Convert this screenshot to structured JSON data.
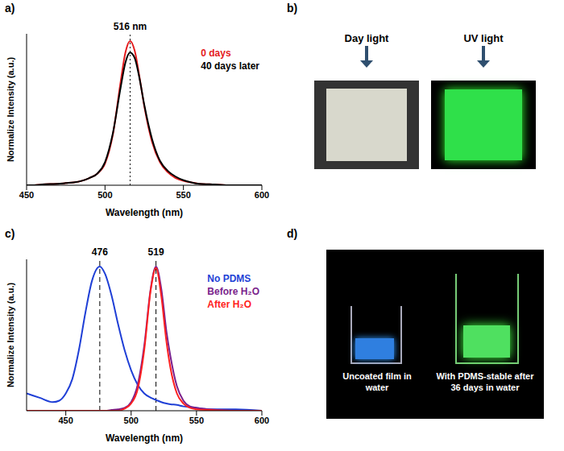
{
  "chart_data": [
    {
      "panel": "a)",
      "type": "line",
      "x": [
        450,
        455,
        460,
        465,
        470,
        475,
        480,
        485,
        490,
        495,
        500,
        505,
        510,
        513,
        516,
        519,
        522,
        525,
        530,
        535,
        540,
        545,
        550,
        555,
        560,
        570,
        580,
        590,
        600
      ],
      "series": [
        {
          "name": "0 days",
          "color": "#e41a1c",
          "values": [
            0,
            0,
            0.005,
            0.008,
            0.01,
            0.015,
            0.02,
            0.03,
            0.05,
            0.08,
            0.15,
            0.35,
            0.72,
            0.92,
            1.0,
            0.93,
            0.75,
            0.55,
            0.3,
            0.16,
            0.09,
            0.05,
            0.03,
            0.02,
            0.01,
            0.005,
            0,
            0,
            0
          ]
        },
        {
          "name": "40 days later",
          "color": "#000000",
          "values": [
            0,
            0,
            0.005,
            0.008,
            0.01,
            0.015,
            0.02,
            0.03,
            0.05,
            0.08,
            0.16,
            0.36,
            0.68,
            0.85,
            0.92,
            0.88,
            0.74,
            0.56,
            0.32,
            0.17,
            0.1,
            0.06,
            0.035,
            0.02,
            0.01,
            0.005,
            0,
            0,
            0
          ]
        }
      ],
      "xlim": [
        450,
        600
      ],
      "xticks": [
        450,
        500,
        550,
        600
      ],
      "ylim": [
        0,
        1.05
      ],
      "x_label": "Wavelength (nm)",
      "y_label": "Normalize Intensity (a.u.)",
      "tick_labels": "x",
      "legend": "upper right",
      "annotations": [
        {
          "text": "516 nm",
          "x": 516,
          "line_style": "dotted"
        }
      ]
    },
    {
      "panel": "c)",
      "type": "line",
      "x": [
        420,
        430,
        440,
        445,
        450,
        455,
        460,
        465,
        470,
        476,
        480,
        485,
        490,
        495,
        500,
        505,
        510,
        515,
        519,
        523,
        527,
        530,
        535,
        540,
        545,
        550,
        560,
        580,
        600
      ],
      "series": [
        {
          "name": "No PDMS",
          "color": "#1f3fd6",
          "values": [
            0.12,
            0.09,
            0.06,
            0.07,
            0.12,
            0.22,
            0.42,
            0.68,
            0.9,
            1.0,
            0.95,
            0.8,
            0.6,
            0.42,
            0.28,
            0.18,
            0.12,
            0.09,
            0.075,
            0.06,
            0.05,
            0.045,
            0.04,
            0.03,
            0.025,
            0.02,
            0.01,
            0.01,
            0
          ]
        },
        {
          "name": "Before H₂O",
          "color": "#7a1f8c",
          "values": [
            0,
            0,
            0,
            0,
            0,
            0,
            0,
            0,
            0,
            0,
            0,
            0.005,
            0.01,
            0.02,
            0.06,
            0.18,
            0.45,
            0.85,
            1.0,
            0.85,
            0.55,
            0.38,
            0.17,
            0.07,
            0.03,
            0.02,
            0.01,
            0,
            0
          ]
        },
        {
          "name": "After H₂O",
          "color": "#ff2020",
          "values": [
            0,
            0,
            0,
            0,
            0,
            0,
            0,
            0,
            0,
            0,
            0,
            0,
            0,
            0.015,
            0.05,
            0.15,
            0.42,
            0.84,
            0.99,
            0.8,
            0.48,
            0.3,
            0.12,
            0.05,
            0.02,
            0.01,
            0.005,
            0,
            0
          ]
        }
      ],
      "xlim": [
        420,
        600
      ],
      "xticks": [
        450,
        500,
        550,
        600
      ],
      "ylim": [
        0,
        1.05
      ],
      "x_label": "Wavelength (nm)",
      "y_label": "Normalize Intensity (a.u.)",
      "tick_labels": "x",
      "legend": "upper right",
      "annotations": [
        {
          "text": "476",
          "x": 476,
          "line_style": "dashed"
        },
        {
          "text": "519",
          "x": 519,
          "line_style": "dashed"
        }
      ]
    }
  ],
  "images": [
    {
      "panel": "b)",
      "captions": [
        "Day light",
        "UV light"
      ]
    },
    {
      "panel": "d)",
      "captions": [
        "Uncoated film in water",
        "With PDMS-stable after 36 days in water"
      ]
    }
  ]
}
